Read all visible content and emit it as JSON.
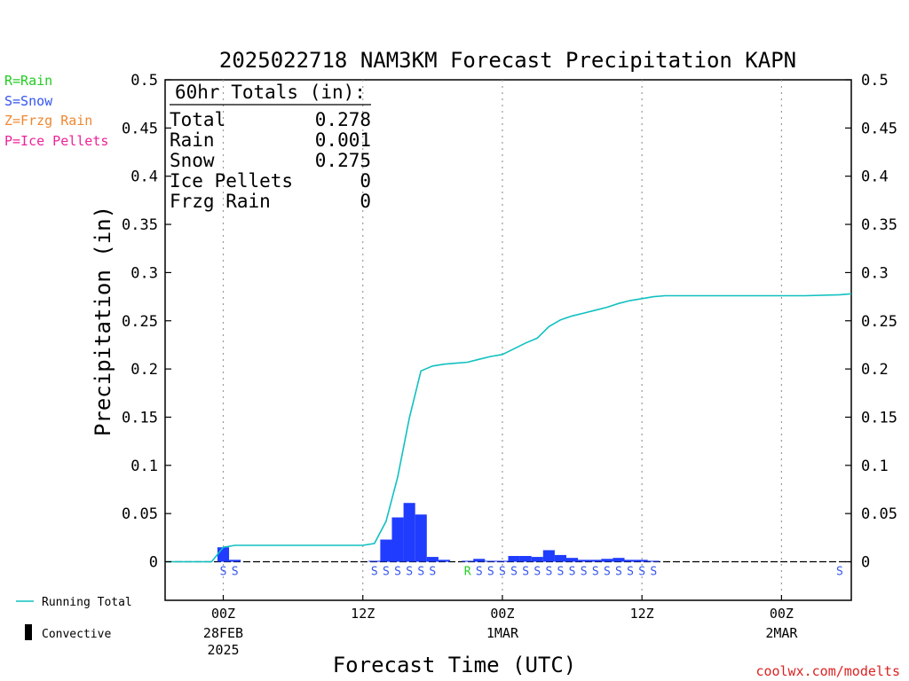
{
  "chart_data": {
    "type": "bar",
    "title": "2025022718 NAM3KM Forecast Precipitation KAPN",
    "ylabel": "Precipitation (in)",
    "xlabel": "Forecast Time (UTC)",
    "ylim": [
      -0.04,
      0.5
    ],
    "yticks": [
      "0.5",
      "0.45",
      "0.4",
      "0.35",
      "0.3",
      "0.25",
      "0.2",
      "0.15",
      "0.1",
      "0.05",
      "0"
    ],
    "ytick_values": [
      0.5,
      0.45,
      0.4,
      0.35,
      0.3,
      0.25,
      0.2,
      0.15,
      0.1,
      0.05,
      0
    ],
    "xlim": [
      -5,
      54
    ],
    "xticks": [
      {
        "hour": 0,
        "label": "00Z",
        "sub1": "28FEB",
        "sub2": "2025"
      },
      {
        "hour": 12,
        "label": "12Z",
        "sub1": "",
        "sub2": ""
      },
      {
        "hour": 24,
        "label": "00Z",
        "sub1": "1MAR",
        "sub2": ""
      },
      {
        "hour": 36,
        "label": "12Z",
        "sub1": "",
        "sub2": ""
      },
      {
        "hour": 48,
        "label": "00Z",
        "sub1": "2MAR",
        "sub2": ""
      }
    ],
    "grid": "vertical-dotted",
    "legend": {
      "types": [
        {
          "text": "R=Rain",
          "color": "#22cc22"
        },
        {
          "text": "S=Snow",
          "color": "#3355ee"
        },
        {
          "text": "Z=Frzg Rain",
          "color": "#ee8833"
        },
        {
          "text": "P=Ice Pellets",
          "color": "#ee2299"
        }
      ],
      "running_total": "Running Total",
      "convective": "Convective"
    },
    "totals": {
      "header": "60hr Totals (in):",
      "rows": [
        {
          "label": "Total",
          "value": "0.278"
        },
        {
          "label": "Rain",
          "value": "0.001"
        },
        {
          "label": "Snow",
          "value": "0.275"
        },
        {
          "label": "Ice Pellets",
          "value": "0"
        },
        {
          "label": "Frzg Rain",
          "value": "0"
        }
      ]
    },
    "series": [
      {
        "name": "Hourly Precipitation",
        "color": "#1f3cff",
        "points": [
          {
            "hour": 0,
            "value": 0.015
          },
          {
            "hour": 1,
            "value": 0.002
          },
          {
            "hour": 13,
            "value": 0.001
          },
          {
            "hour": 14,
            "value": 0.023
          },
          {
            "hour": 15,
            "value": 0.046
          },
          {
            "hour": 16,
            "value": 0.061
          },
          {
            "hour": 17,
            "value": 0.049
          },
          {
            "hour": 18,
            "value": 0.005
          },
          {
            "hour": 19,
            "value": 0.002
          },
          {
            "hour": 21,
            "value": 0.001
          },
          {
            "hour": 22,
            "value": 0.003
          },
          {
            "hour": 23,
            "value": 0.001
          },
          {
            "hour": 24,
            "value": 0.001
          },
          {
            "hour": 25,
            "value": 0.006
          },
          {
            "hour": 26,
            "value": 0.006
          },
          {
            "hour": 27,
            "value": 0.005
          },
          {
            "hour": 28,
            "value": 0.012
          },
          {
            "hour": 29,
            "value": 0.007
          },
          {
            "hour": 30,
            "value": 0.004
          },
          {
            "hour": 31,
            "value": 0.002
          },
          {
            "hour": 32,
            "value": 0.002
          },
          {
            "hour": 33,
            "value": 0.003
          },
          {
            "hour": 34,
            "value": 0.004
          },
          {
            "hour": 35,
            "value": 0.002
          },
          {
            "hour": 36,
            "value": 0.002
          },
          {
            "hour": 37,
            "value": 0.001
          }
        ]
      },
      {
        "name": "Running Total",
        "color": "#11c0c0",
        "points": [
          {
            "hour": -5,
            "value": 0.0
          },
          {
            "hour": -1,
            "value": 0.0
          },
          {
            "hour": 0,
            "value": 0.015
          },
          {
            "hour": 1,
            "value": 0.017
          },
          {
            "hour": 12,
            "value": 0.017
          },
          {
            "hour": 13,
            "value": 0.019
          },
          {
            "hour": 14,
            "value": 0.042
          },
          {
            "hour": 15,
            "value": 0.088
          },
          {
            "hour": 16,
            "value": 0.149
          },
          {
            "hour": 17,
            "value": 0.198
          },
          {
            "hour": 18,
            "value": 0.203
          },
          {
            "hour": 19,
            "value": 0.205
          },
          {
            "hour": 20,
            "value": 0.206
          },
          {
            "hour": 21,
            "value": 0.207
          },
          {
            "hour": 22,
            "value": 0.21
          },
          {
            "hour": 23,
            "value": 0.213
          },
          {
            "hour": 24,
            "value": 0.215
          },
          {
            "hour": 25,
            "value": 0.221
          },
          {
            "hour": 26,
            "value": 0.227
          },
          {
            "hour": 27,
            "value": 0.232
          },
          {
            "hour": 28,
            "value": 0.244
          },
          {
            "hour": 29,
            "value": 0.251
          },
          {
            "hour": 30,
            "value": 0.255
          },
          {
            "hour": 31,
            "value": 0.258
          },
          {
            "hour": 32,
            "value": 0.261
          },
          {
            "hour": 33,
            "value": 0.264
          },
          {
            "hour": 34,
            "value": 0.268
          },
          {
            "hour": 35,
            "value": 0.271
          },
          {
            "hour": 36,
            "value": 0.273
          },
          {
            "hour": 37,
            "value": 0.275
          },
          {
            "hour": 38,
            "value": 0.276
          },
          {
            "hour": 50,
            "value": 0.276
          },
          {
            "hour": 53,
            "value": 0.277
          },
          {
            "hour": 54,
            "value": 0.278
          }
        ]
      }
    ],
    "ptype_markers": [
      {
        "hour": 0,
        "type": "S"
      },
      {
        "hour": 1,
        "type": "S"
      },
      {
        "hour": 13,
        "type": "S"
      },
      {
        "hour": 14,
        "type": "S"
      },
      {
        "hour": 15,
        "type": "S"
      },
      {
        "hour": 16,
        "type": "S"
      },
      {
        "hour": 17,
        "type": "S"
      },
      {
        "hour": 18,
        "type": "S"
      },
      {
        "hour": 21,
        "type": "R"
      },
      {
        "hour": 22,
        "type": "S"
      },
      {
        "hour": 23,
        "type": "S"
      },
      {
        "hour": 24,
        "type": "S"
      },
      {
        "hour": 25,
        "type": "S"
      },
      {
        "hour": 26,
        "type": "S"
      },
      {
        "hour": 27,
        "type": "S"
      },
      {
        "hour": 28,
        "type": "S"
      },
      {
        "hour": 29,
        "type": "S"
      },
      {
        "hour": 30,
        "type": "S"
      },
      {
        "hour": 31,
        "type": "S"
      },
      {
        "hour": 32,
        "type": "S"
      },
      {
        "hour": 33,
        "type": "S"
      },
      {
        "hour": 34,
        "type": "S"
      },
      {
        "hour": 35,
        "type": "S"
      },
      {
        "hour": 36,
        "type": "S"
      },
      {
        "hour": 37,
        "type": "S"
      },
      {
        "hour": 53,
        "type": "S"
      }
    ]
  },
  "credit": "coolwx.com/modelts"
}
